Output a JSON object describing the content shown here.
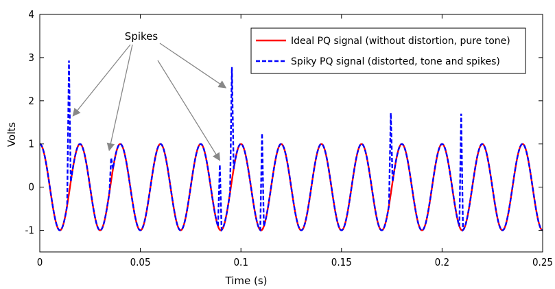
{
  "chart_data": {
    "type": "line",
    "title": "",
    "xlabel": "Time (s)",
    "ylabel": "Volts",
    "xlim": [
      0,
      0.25
    ],
    "ylim": [
      -1.5,
      4
    ],
    "xticks": [
      0,
      0.05,
      0.1,
      0.15,
      0.2,
      0.25
    ],
    "xtick_labels": [
      "0",
      "0.05",
      "0.1",
      "0.15",
      "0.2",
      "0.25"
    ],
    "yticks": [
      -1,
      0,
      1,
      2,
      3,
      4
    ],
    "ytick_labels": [
      "-1",
      "0",
      "1",
      "2",
      "3",
      "4"
    ],
    "grid": false,
    "legend_position": "top-right",
    "series": [
      {
        "name": "Ideal PQ signal (without distortion, pure tone)",
        "color": "#ff0000",
        "style": "solid",
        "function": "cos",
        "amplitude": 1,
        "frequency_hz": 50,
        "x_range": [
          0,
          0.25
        ]
      },
      {
        "name": "Spiky PQ signal (distorted, tone and spikes)",
        "color": "#0000ff",
        "style": "dashed",
        "base": "same as ideal signal",
        "spikes": [
          {
            "x": 0.0145,
            "y": 2.93
          },
          {
            "x": 0.0355,
            "y": 0.68
          },
          {
            "x": 0.0895,
            "y": 0.52
          },
          {
            "x": 0.0955,
            "y": 2.78
          },
          {
            "x": 0.1105,
            "y": 1.25
          },
          {
            "x": 0.1745,
            "y": 1.72
          },
          {
            "x": 0.2095,
            "y": 1.7
          }
        ]
      }
    ],
    "annotations": [
      {
        "text": "Spikes",
        "arrows_point_to": [
          [
            0.0165,
            1.65
          ],
          [
            0.0345,
            0.85
          ],
          [
            0.0895,
            0.62
          ],
          [
            0.0925,
            2.3
          ]
        ]
      }
    ]
  }
}
